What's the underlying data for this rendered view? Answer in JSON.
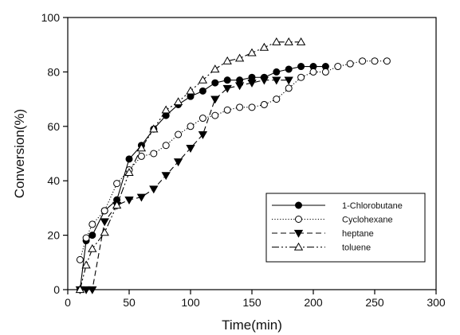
{
  "chart_data": {
    "type": "line",
    "title": "",
    "xlabel": "Time(min)",
    "ylabel": "Conversion(%)",
    "xlim": [
      0,
      300
    ],
    "ylim": [
      0,
      100
    ],
    "xticks": [
      0,
      50,
      100,
      150,
      200,
      250,
      300
    ],
    "yticks": [
      0,
      20,
      40,
      60,
      80,
      100
    ],
    "grid": false,
    "legend_position": "bottom-right",
    "series": [
      {
        "name": "1-Chlorobutane",
        "marker": "filled-circle",
        "line_style": "solid",
        "color": "#000000",
        "x": [
          10,
          15,
          20,
          30,
          40,
          50,
          60,
          70,
          80,
          90,
          100,
          110,
          120,
          130,
          140,
          150,
          160,
          170,
          180,
          190,
          200,
          210
        ],
        "y": [
          0,
          18,
          20,
          29,
          33,
          48,
          53,
          59,
          64,
          68,
          71,
          73,
          76,
          77,
          77,
          78,
          78,
          80,
          81,
          82,
          82,
          82
        ]
      },
      {
        "name": "Cyclohexane",
        "marker": "open-circle",
        "line_style": "dotted",
        "color": "#000000",
        "x": [
          10,
          15,
          20,
          30,
          40,
          50,
          60,
          70,
          80,
          90,
          100,
          110,
          120,
          130,
          140,
          150,
          160,
          170,
          180,
          190,
          200,
          210,
          220,
          230,
          240,
          250,
          260
        ],
        "y": [
          11,
          19,
          24,
          29,
          39,
          44,
          49,
          50,
          53,
          57,
          60,
          63,
          64,
          66,
          67,
          67,
          68,
          70,
          74,
          78,
          80,
          80,
          82,
          83,
          84,
          84,
          84
        ]
      },
      {
        "name": "heptane",
        "marker": "filled-triangle-down",
        "line_style": "dashed",
        "color": "#000000",
        "x": [
          10,
          15,
          20,
          30,
          40,
          50,
          60,
          70,
          80,
          90,
          100,
          110,
          120,
          130,
          140,
          150,
          160,
          170,
          180
        ],
        "y": [
          0,
          0,
          0,
          25,
          31,
          33,
          34,
          37,
          42,
          47,
          52,
          57,
          70,
          74,
          75,
          76,
          77,
          77,
          77
        ]
      },
      {
        "name": "toluene",
        "marker": "open-triangle-up",
        "line_style": "dash-dot-dot",
        "color": "#000000",
        "x": [
          10,
          15,
          20,
          30,
          40,
          50,
          60,
          70,
          80,
          90,
          100,
          110,
          120,
          130,
          140,
          150,
          160,
          170,
          180,
          190
        ],
        "y": [
          0,
          9,
          15,
          21,
          31,
          43,
          52,
          59,
          66,
          69,
          73,
          77,
          81,
          84,
          85,
          87,
          89,
          91,
          91,
          91
        ]
      }
    ]
  }
}
